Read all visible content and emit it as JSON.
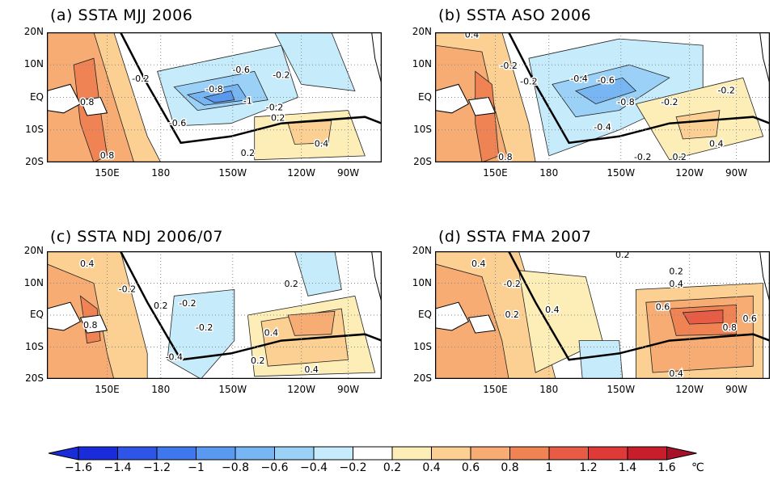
{
  "panels": [
    {
      "id": "a",
      "title": "(a)  SSTA  MJJ  2006",
      "contour_labels": [
        "-0.2",
        "-0.6",
        "-0.2",
        "-0.8",
        "-1",
        "-0.2",
        "0.8",
        "-0.6",
        "0.2",
        "0.2",
        "0.4",
        "0.8"
      ]
    },
    {
      "id": "b",
      "title": "(b)  SSTA  ASO  2006",
      "contour_labels": [
        "0.4",
        "-0.2",
        "-0.2",
        "-0.4",
        "-0.6",
        "-0.8",
        "-0.2",
        "0.8",
        "-0.4",
        "0.4",
        "0.2",
        "-0.2",
        "-0.2"
      ]
    },
    {
      "id": "c",
      "title": "(c)  SSTA  NDJ  2006/07",
      "contour_labels": [
        "0.4",
        "-0.2",
        "0.2",
        "-0.2",
        "-0.2",
        "0.2",
        "0.8",
        "-0.4",
        "0.4",
        "0.2",
        "0.4"
      ]
    },
    {
      "id": "d",
      "title": "(d)  SSTA  FMA  2007",
      "contour_labels": [
        "0.4",
        "-0.2",
        "0.2",
        "0.2",
        "0.4",
        "0.4",
        "0.2",
        "0.6",
        "0.8",
        "0.6",
        "0.4"
      ]
    }
  ],
  "lat_labels": [
    "20N",
    "10N",
    "EQ",
    "10S",
    "20S"
  ],
  "lon_labels": [
    "150E",
    "180",
    "150W",
    "120W",
    "90W"
  ],
  "colorbar": {
    "labels": [
      "−1.6",
      "−1.4",
      "−1.2",
      "−1",
      "−0.8",
      "−0.6",
      "−0.4",
      "−0.2",
      "0.2",
      "0.4",
      "0.6",
      "0.8",
      "1",
      "1.2",
      "1.4",
      "1.6"
    ],
    "unit": "℃",
    "colors": [
      "#1a2bd9",
      "#2f55e6",
      "#3f78ec",
      "#5a99f0",
      "#78b6f3",
      "#9bd1f6",
      "#c6ebfa",
      "#ffffff",
      "#fdeeb8",
      "#fbd092",
      "#f6ac72",
      "#ef8354",
      "#e85c45",
      "#dd3a38",
      "#c81e2c"
    ]
  }
}
